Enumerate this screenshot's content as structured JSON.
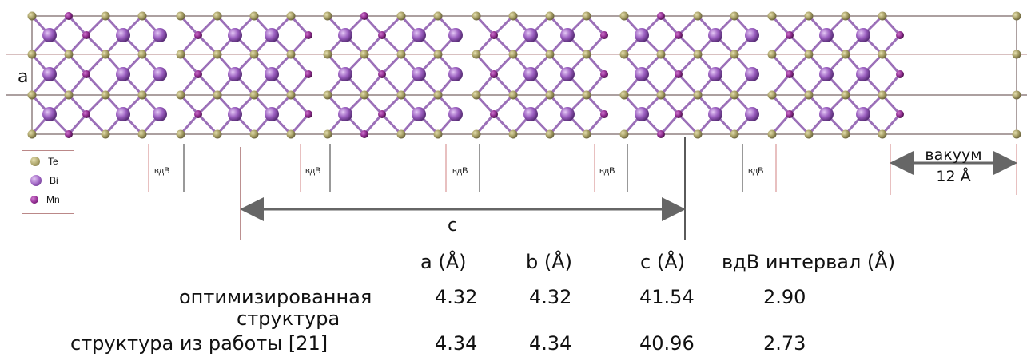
{
  "figure": {
    "lattice_label_a": "a",
    "lattice_label_c": "c",
    "vdw_label": "вдВ",
    "vacuum_label": "вакуум",
    "vacuum_value": "12 Å"
  },
  "legend": {
    "items": [
      {
        "label": "Te",
        "color": "#a59d63"
      },
      {
        "label": "Bi",
        "color": "#9b5fc0"
      },
      {
        "label": "Mn",
        "color": "#8e2a8e"
      }
    ]
  },
  "table": {
    "headers": {
      "a": "a (Å)",
      "b": "b (Å)",
      "c": "c (Å)",
      "vdw": "вдВ интервал (Å)"
    },
    "rows": [
      {
        "label_line1": "оптимизированная",
        "label_line2": "структура",
        "a": "4.32",
        "b": "4.32",
        "c": "41.54",
        "vdw": "2.90"
      },
      {
        "label_line1": "структура из работы [21]",
        "a": "4.34",
        "b": "4.34",
        "c": "40.96",
        "vdw": "2.73"
      }
    ]
  },
  "colors": {
    "te": "#a59d63",
    "bi": "#9b5fc0",
    "mn": "#8e2a8e",
    "cell_line": "#7a4a4a",
    "arrow": "#666666"
  }
}
